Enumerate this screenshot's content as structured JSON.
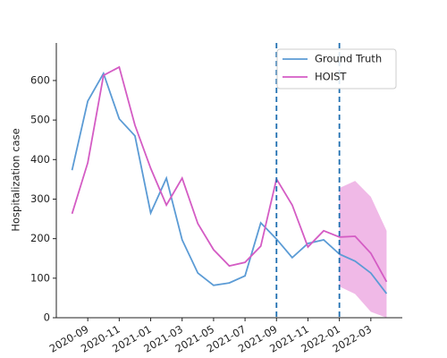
{
  "chart_data": {
    "type": "line",
    "ylabel": "Hospitalization case",
    "x": [
      "2020-08",
      "2020-09",
      "2020-10",
      "2020-11",
      "2020-12",
      "2021-01",
      "2021-02",
      "2021-03",
      "2021-04",
      "2021-05",
      "2021-06",
      "2021-07",
      "2021-08",
      "2021-09",
      "2021-10",
      "2021-11",
      "2021-12",
      "2022-01",
      "2022-02",
      "2022-03",
      "2022-04"
    ],
    "series": [
      {
        "name": "Ground Truth",
        "color": "#5b9bd5",
        "values": [
          373,
          548,
          618,
          503,
          460,
          265,
          353,
          197,
          113,
          82,
          88,
          106,
          240,
          199,
          152,
          188,
          197,
          161,
          143,
          113,
          61
        ]
      },
      {
        "name": "HOIST",
        "color": "#d45cc4",
        "values": [
          263,
          392,
          613,
          634,
          487,
          378,
          285,
          353,
          238,
          172,
          131,
          140,
          181,
          351,
          285,
          179,
          220,
          204,
          206,
          163,
          91
        ]
      }
    ],
    "band": {
      "color": "#f0b9e7",
      "x": [
        "2022-01",
        "2022-02",
        "2022-03",
        "2022-04"
      ],
      "lower": [
        79,
        60,
        15,
        0
      ],
      "upper": [
        328,
        346,
        306,
        220
      ]
    },
    "vlines": {
      "color": "#1f6fb0",
      "x": [
        "2021-09",
        "2022-01"
      ]
    },
    "xlim": [
      "2020-07",
      "2022-05"
    ],
    "xticks": [
      "2020-09",
      "2020-11",
      "2021-01",
      "2021-03",
      "2021-05",
      "2021-07",
      "2021-09",
      "2021-11",
      "2022-01",
      "2022-03"
    ],
    "ylim": [
      0,
      695
    ],
    "yticks": [
      0,
      100,
      200,
      300,
      400,
      500,
      600
    ],
    "legend": "upper right"
  }
}
